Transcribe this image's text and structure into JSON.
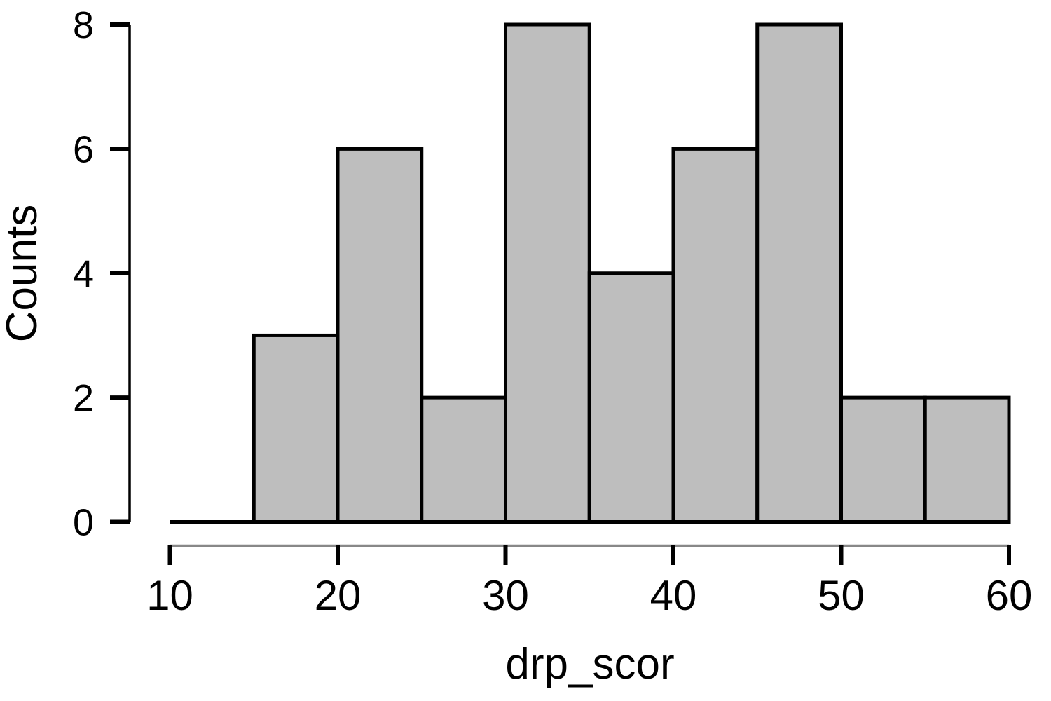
{
  "chart_data": {
    "type": "bar",
    "subtype": "histogram",
    "title": "",
    "xlabel": "drp_scor",
    "ylabel": "Counts",
    "bin_edges": [
      15,
      20,
      25,
      30,
      35,
      40,
      45,
      50,
      55,
      60
    ],
    "counts": [
      3,
      6,
      2,
      8,
      4,
      6,
      8,
      2,
      2
    ],
    "xlim": [
      10,
      60
    ],
    "ylim": [
      0,
      8
    ],
    "x_ticks": [
      10,
      20,
      30,
      40,
      50,
      60
    ],
    "y_ticks": [
      0,
      2,
      4,
      6,
      8
    ],
    "grid": false,
    "legend": "none",
    "bar_fill": "#BEBEBE",
    "bar_stroke": "#000000",
    "x_axis_line_color": "#888888",
    "y_axis_line_color": "#000000",
    "tick_color": "#000000",
    "text_color": "#000000",
    "background": "#ffffff"
  }
}
